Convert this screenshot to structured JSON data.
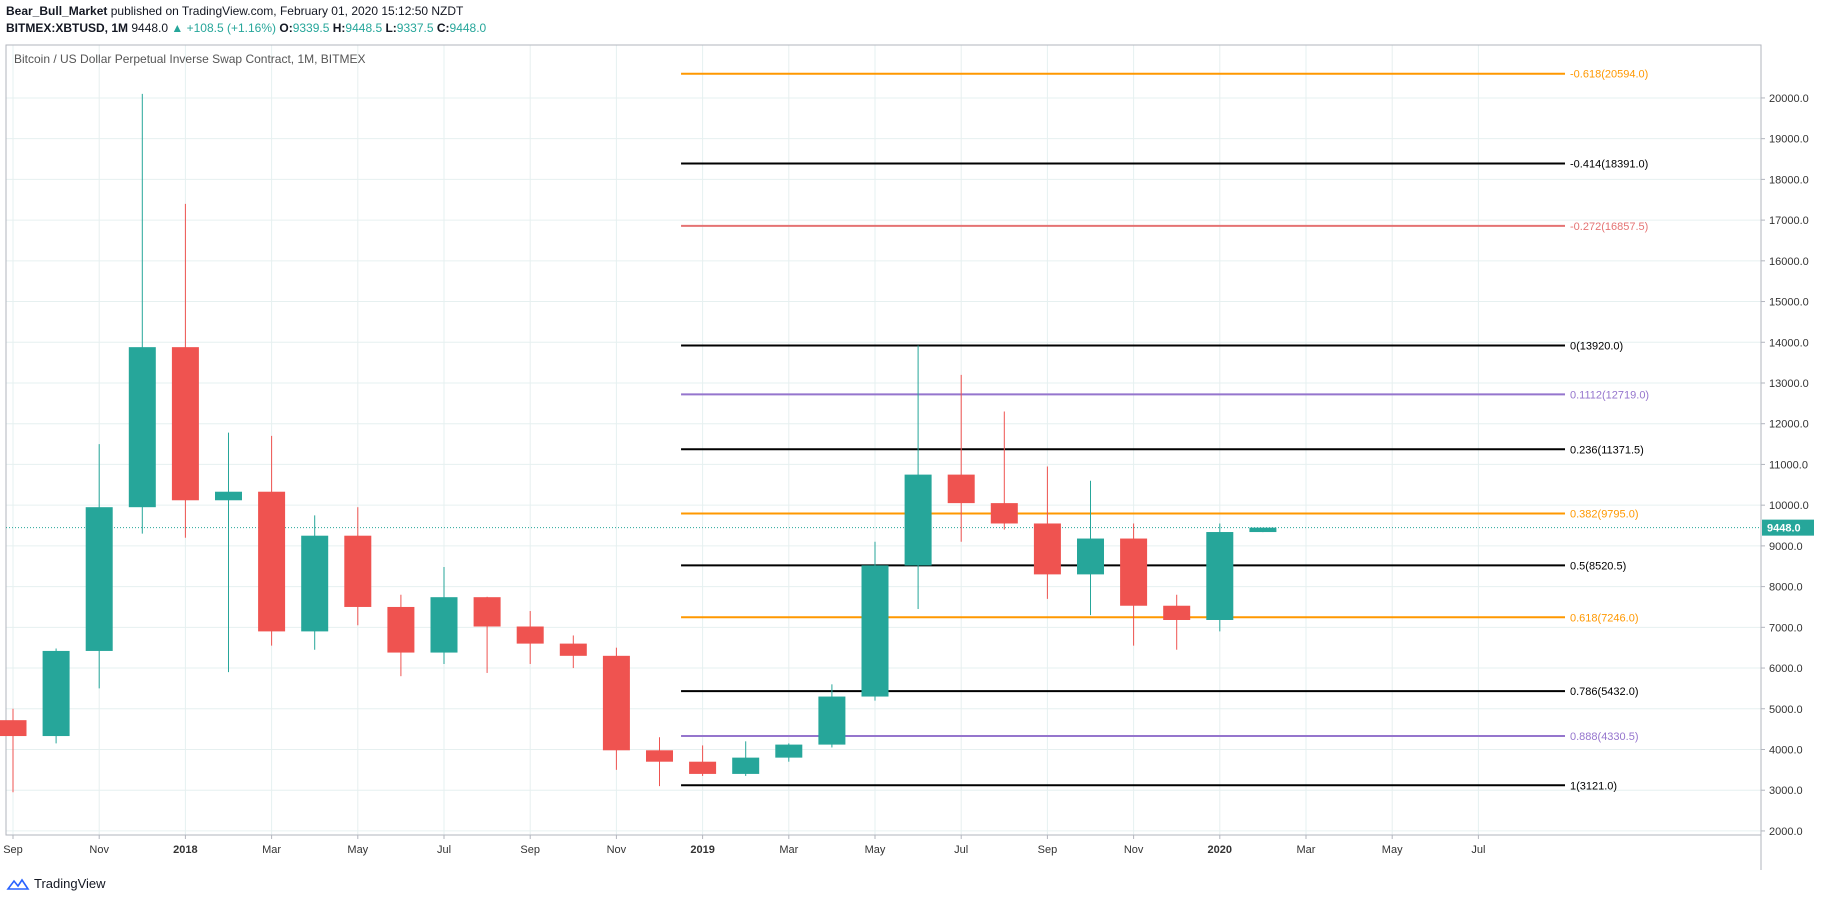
{
  "header": {
    "author": "Bear_Bull_Market",
    "published_text": "published on TradingView.com, February 01, 2020 15:12:50 NZDT",
    "symbol": "BITMEX:XBTUSD, 1M",
    "last": "9448.0",
    "change": "▲ +108.5 (+1.16%)",
    "o_label": "O:",
    "o_value": "9339.5",
    "h_label": "H:",
    "h_value": "9448.5",
    "l_label": "L:",
    "l_value": "9337.5",
    "c_label": "C:",
    "c_value": "9448.0"
  },
  "footer": {
    "brand": "TradingView"
  },
  "colors": {
    "up": "#26a69a",
    "down": "#ef5350",
    "grid": "#e6f0f0"
  },
  "chart_data": {
    "type": "candlestick",
    "title": "Bitcoin / US Dollar Perpetual Inverse Swap Contract, 1M, BITMEX",
    "ylim": [
      1900,
      21300
    ],
    "y_ticks": [
      "2000.0",
      "3000.0",
      "4000.0",
      "5000.0",
      "6000.0",
      "7000.0",
      "8000.0",
      "9000.0",
      "10000.0",
      "11000.0",
      "12000.0",
      "13000.0",
      "14000.0",
      "15000.0",
      "16000.0",
      "17000.0",
      "18000.0",
      "19000.0",
      "20000.0"
    ],
    "x_labels": [
      {
        "i": 0,
        "label": "Sep",
        "bold": false
      },
      {
        "i": 2,
        "label": "Nov",
        "bold": false
      },
      {
        "i": 4,
        "label": "2018",
        "bold": true
      },
      {
        "i": 6,
        "label": "Mar",
        "bold": false
      },
      {
        "i": 8,
        "label": "May",
        "bold": false
      },
      {
        "i": 10,
        "label": "Jul",
        "bold": false
      },
      {
        "i": 12,
        "label": "Sep",
        "bold": false
      },
      {
        "i": 14,
        "label": "Nov",
        "bold": false
      },
      {
        "i": 16,
        "label": "2019",
        "bold": true
      },
      {
        "i": 18,
        "label": "Mar",
        "bold": false
      },
      {
        "i": 20,
        "label": "May",
        "bold": false
      },
      {
        "i": 22,
        "label": "Jul",
        "bold": false
      },
      {
        "i": 24,
        "label": "Sep",
        "bold": false
      },
      {
        "i": 26,
        "label": "Nov",
        "bold": false
      },
      {
        "i": 28,
        "label": "2020",
        "bold": true
      },
      {
        "i": 30,
        "label": "Mar",
        "bold": false
      },
      {
        "i": 32,
        "label": "May",
        "bold": false
      },
      {
        "i": 34,
        "label": "Jul",
        "bold": false
      }
    ],
    "candles": [
      {
        "date": "2017-09",
        "o": 4720,
        "h": 5000,
        "l": 2950,
        "c": 4330
      },
      {
        "date": "2017-10",
        "o": 4330,
        "h": 6480,
        "l": 4150,
        "c": 6420
      },
      {
        "date": "2017-11",
        "o": 6420,
        "h": 11500,
        "l": 5500,
        "c": 9950
      },
      {
        "date": "2017-12",
        "o": 9950,
        "h": 20100,
        "l": 9300,
        "c": 13880
      },
      {
        "date": "2018-01",
        "o": 13880,
        "h": 17400,
        "l": 9200,
        "c": 10120
      },
      {
        "date": "2018-02",
        "o": 10120,
        "h": 11780,
        "l": 5900,
        "c": 10330
      },
      {
        "date": "2018-03",
        "o": 10330,
        "h": 11700,
        "l": 6550,
        "c": 6900
      },
      {
        "date": "2018-04",
        "o": 6900,
        "h": 9750,
        "l": 6450,
        "c": 9250
      },
      {
        "date": "2018-05",
        "o": 9250,
        "h": 9950,
        "l": 7050,
        "c": 7500
      },
      {
        "date": "2018-06",
        "o": 7500,
        "h": 7800,
        "l": 5800,
        "c": 6380
      },
      {
        "date": "2018-07",
        "o": 6380,
        "h": 8480,
        "l": 6100,
        "c": 7740
      },
      {
        "date": "2018-08",
        "o": 7740,
        "h": 7750,
        "l": 5880,
        "c": 7020
      },
      {
        "date": "2018-09",
        "o": 7020,
        "h": 7400,
        "l": 6100,
        "c": 6600
      },
      {
        "date": "2018-10",
        "o": 6600,
        "h": 6800,
        "l": 6000,
        "c": 6300
      },
      {
        "date": "2018-11",
        "o": 6300,
        "h": 6500,
        "l": 3500,
        "c": 3980
      },
      {
        "date": "2018-12",
        "o": 3980,
        "h": 4300,
        "l": 3100,
        "c": 3700
      },
      {
        "date": "2019-01",
        "o": 3700,
        "h": 4100,
        "l": 3350,
        "c": 3400
      },
      {
        "date": "2019-02",
        "o": 3400,
        "h": 4200,
        "l": 3350,
        "c": 3800
      },
      {
        "date": "2019-03",
        "o": 3800,
        "h": 4150,
        "l": 3700,
        "c": 4120
      },
      {
        "date": "2019-04",
        "o": 4120,
        "h": 5600,
        "l": 4050,
        "c": 5300
      },
      {
        "date": "2019-05",
        "o": 5300,
        "h": 9100,
        "l": 5200,
        "c": 8520
      },
      {
        "date": "2019-06",
        "o": 8520,
        "h": 13920,
        "l": 7450,
        "c": 10750
      },
      {
        "date": "2019-07",
        "o": 10750,
        "h": 13200,
        "l": 9100,
        "c": 10050
      },
      {
        "date": "2019-08",
        "o": 10050,
        "h": 12300,
        "l": 9400,
        "c": 9550
      },
      {
        "date": "2019-09",
        "o": 9550,
        "h": 10950,
        "l": 7700,
        "c": 8300
      },
      {
        "date": "2019-10",
        "o": 8300,
        "h": 10600,
        "l": 7300,
        "c": 9180
      },
      {
        "date": "2019-11",
        "o": 9180,
        "h": 9550,
        "l": 6550,
        "c": 7530
      },
      {
        "date": "2019-12",
        "o": 7530,
        "h": 7800,
        "l": 6450,
        "c": 7180
      },
      {
        "date": "2020-01",
        "o": 7180,
        "h": 9550,
        "l": 6900,
        "c": 9340
      },
      {
        "date": "2020-02",
        "o": 9339.5,
        "h": 9448.5,
        "l": 9337.5,
        "c": 9448.0
      }
    ],
    "fib_levels": [
      {
        "label": "-0.618(20594.0)",
        "value": 20594.0,
        "color": "#ff9800"
      },
      {
        "label": "-0.414(18391.0)",
        "value": 18391.0,
        "color": "#000000"
      },
      {
        "label": "-0.272(16857.5)",
        "value": 16857.5,
        "color": "#e57373"
      },
      {
        "label": "0(13920.0)",
        "value": 13920.0,
        "color": "#000000"
      },
      {
        "label": "0.1112(12719.0)",
        "value": 12719.0,
        "color": "#9575cd"
      },
      {
        "label": "0.236(11371.5)",
        "value": 11371.5,
        "color": "#000000"
      },
      {
        "label": "0.382(9795.0)",
        "value": 9795.0,
        "color": "#ff9800"
      },
      {
        "label": "0.5(8520.5)",
        "value": 8520.5,
        "color": "#000000"
      },
      {
        "label": "0.618(7246.0)",
        "value": 7246.0,
        "color": "#ff9800"
      },
      {
        "label": "0.786(5432.0)",
        "value": 5432.0,
        "color": "#000000"
      },
      {
        "label": "0.888(4330.5)",
        "value": 4330.5,
        "color": "#9575cd"
      },
      {
        "label": "1(3121.0)",
        "value": 3121.0,
        "color": "#000000"
      }
    ],
    "fib_start_index": 15.5,
    "current_price": {
      "value": 9448.0,
      "label": "9448.0",
      "color": "#26a69a"
    }
  }
}
